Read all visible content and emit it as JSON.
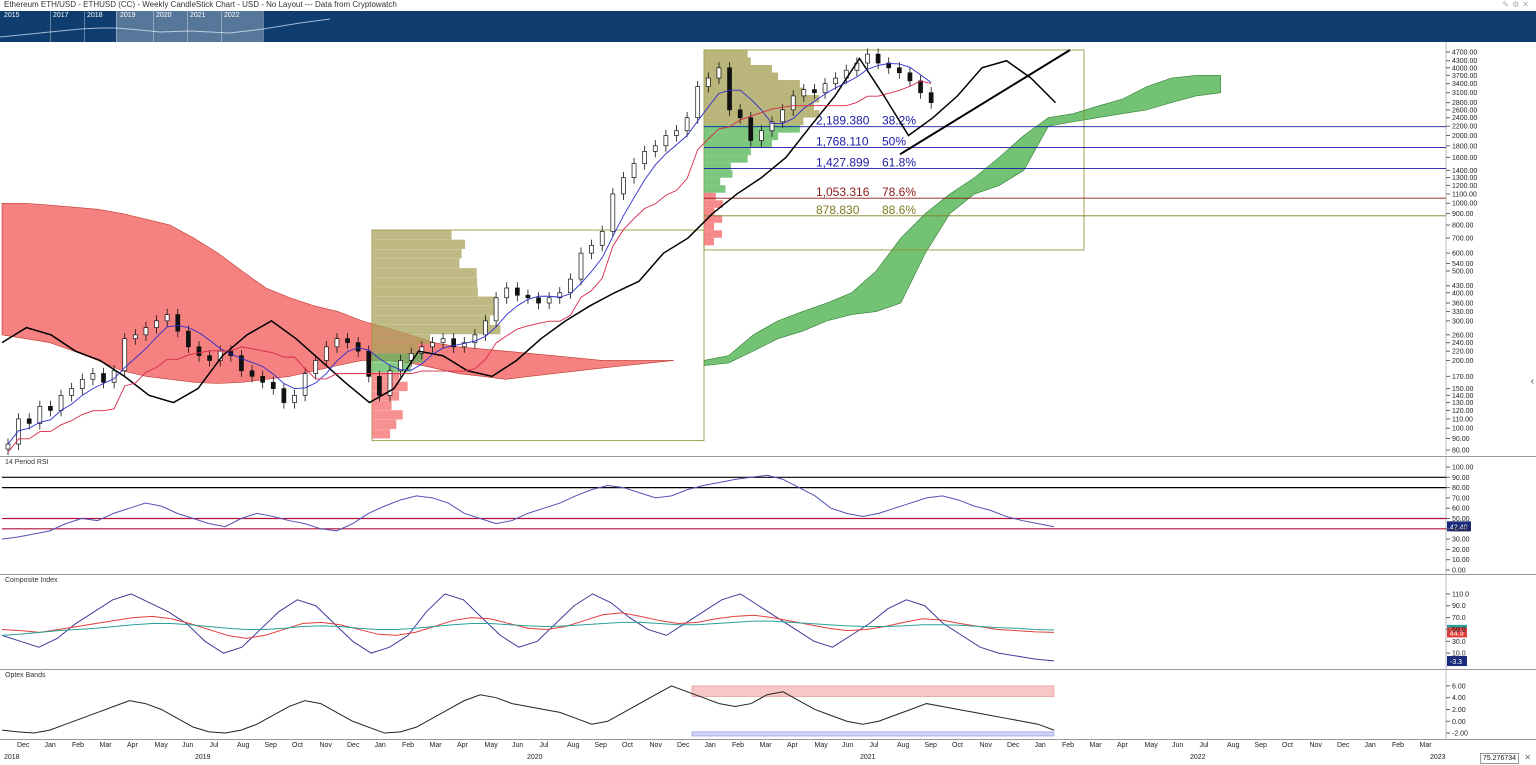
{
  "header": {
    "title": "Ethereum ETH/USD - ETHUSD (CC) - Weekly CandleStick Chart - USD - No Layout --- Data from Cryptowatch",
    "icons": [
      "pencil-icon",
      "gear-icon",
      "close-icon"
    ]
  },
  "navigator": {
    "years": [
      "2015",
      "2017",
      "2018",
      "2019",
      "2020",
      "2021",
      "2022"
    ]
  },
  "colors": {
    "navigator_bg": "#0e3d6e",
    "cloud_bull": "#5cb85c",
    "cloud_bear": "#f46b6b",
    "volume_olive": "#a9a25a",
    "fib_blue": "#1a1aa6",
    "fib_red": "#8b1a1a",
    "fib_olive": "#7f7a21",
    "rsi_line": "#5252b8",
    "composite_line": "#3d3d9c",
    "composite_fast_ma": "#e0403d",
    "composite_slow_ma": "#2aa198"
  },
  "chart_data": [
    {
      "type": "candlestick",
      "title": "Ethereum ETH/USD - ETHUSD (CC) - Weekly CandleStick Chart - USD",
      "yscale": "log",
      "ylim": [
        80,
        5000
      ],
      "y_ticks": [
        "4700.00",
        "4300.00",
        "4000.00",
        "3700.00",
        "3400.00",
        "3100.00",
        "2800.00",
        "2600.00",
        "2400.00",
        "2200.00",
        "2000.00",
        "1800.00",
        "1600.00",
        "1400.00",
        "1300.00",
        "1200.00",
        "1100.00",
        "1000.00",
        "900.00",
        "800.00",
        "700.00",
        "600.00",
        "540.00",
        "500.00",
        "430.00",
        "400.00",
        "360.00",
        "330.00",
        "300.00",
        "260.00",
        "240.00",
        "220.00",
        "200.00",
        "170.00",
        "150.00",
        "140.00",
        "130.00",
        "120.00",
        "110.00",
        "100.00",
        "90.00",
        "80.00"
      ],
      "x_months": [
        "Dec",
        "Jan",
        "Feb",
        "Mar",
        "Apr",
        "May",
        "Jun",
        "Jul",
        "Aug",
        "Sep",
        "Oct",
        "Nov",
        "Dec",
        "Jan",
        "Feb",
        "Mar",
        "Apr",
        "May",
        "Jun",
        "Jul",
        "Aug",
        "Sep",
        "Oct",
        "Nov",
        "Dec",
        "Jan",
        "Feb",
        "Mar",
        "Apr",
        "May",
        "Jun",
        "Jul",
        "Aug",
        "Sep",
        "Oct",
        "Nov",
        "Dec",
        "Jan",
        "Feb",
        "Mar",
        "Apr",
        "May",
        "Jun",
        "Jul",
        "Aug",
        "Sep",
        "Oct",
        "Nov",
        "Dec",
        "Jan",
        "Feb",
        "Mar"
      ],
      "x_years": [
        "2018",
        "2019",
        "2020",
        "2021",
        "2022",
        "2023"
      ],
      "weekly_close_2019_2022": [
        85,
        110,
        105,
        125,
        120,
        140,
        150,
        165,
        175,
        160,
        180,
        250,
        260,
        280,
        300,
        320,
        270,
        230,
        210,
        200,
        220,
        210,
        180,
        170,
        160,
        150,
        130,
        140,
        175,
        200,
        230,
        250,
        240,
        220,
        170,
        140,
        180,
        200,
        215,
        230,
        240,
        250,
        230,
        240,
        260,
        300,
        380,
        420,
        390,
        380,
        360,
        380,
        400,
        460,
        600,
        650,
        750,
        1100,
        1300,
        1500,
        1700,
        1800,
        2000,
        2100,
        2400,
        3300,
        3600,
        4000,
        2600,
        2400,
        1900,
        2100,
        2300,
        2600,
        3000,
        3200,
        3100,
        3400,
        3600,
        3900,
        4200,
        4600,
        4200,
        4000,
        3800,
        3500,
        3100,
        2800
      ],
      "chikou_span": [
        240,
        280,
        260,
        220,
        200,
        170,
        140,
        130,
        150,
        210,
        260,
        300,
        250,
        200,
        160,
        130,
        150,
        220,
        210,
        180,
        170,
        200,
        250,
        300,
        350,
        400,
        450,
        600,
        700,
        900,
        1100,
        1300,
        1600,
        2200,
        3000,
        4400,
        3000,
        2000,
        2400,
        3000,
        4000,
        4300,
        3600,
        2800
      ],
      "ichimoku_cloud": [
        {
          "start": "2018-Dec",
          "end": "2020-Jan",
          "color": "bear"
        },
        {
          "start": "2020-Jan",
          "end": "2020-Dec",
          "color": "bear"
        },
        {
          "start": "2020-Dec",
          "end": "2022-Jul",
          "color": "bull"
        }
      ],
      "fibonacci_levels": [
        {
          "price": "2,189.380",
          "ratio": "38.2%",
          "color": "blue"
        },
        {
          "price": "1,768.110",
          "ratio": "50%",
          "color": "blue"
        },
        {
          "price": "1,427.899",
          "ratio": "61.8%",
          "color": "blue"
        },
        {
          "price": "1,053.316",
          "ratio": "78.6%",
          "color": "red"
        },
        {
          "price": "878.830",
          "ratio": "88.6%",
          "color": "olive"
        }
      ],
      "trendline": {
        "from": 1650,
        "to": 4800
      }
    },
    {
      "type": "line",
      "title": "14 Period RSI",
      "ylim": [
        0,
        100
      ],
      "y_ticks": [
        "100.00",
        "90.00",
        "80.00",
        "70.00",
        "60.00",
        "50.00",
        "40.00",
        "30.00",
        "20.00",
        "10.00",
        "0.00"
      ],
      "levels": {
        "upper": [
          80,
          90
        ],
        "lower": [
          40,
          50
        ]
      },
      "last_value": "42.40",
      "values": [
        30,
        32,
        35,
        38,
        45,
        50,
        48,
        55,
        60,
        65,
        62,
        55,
        50,
        45,
        42,
        50,
        55,
        52,
        48,
        45,
        40,
        38,
        45,
        55,
        62,
        68,
        72,
        70,
        65,
        55,
        50,
        45,
        48,
        55,
        60,
        65,
        72,
        78,
        82,
        80,
        75,
        70,
        72,
        78,
        82,
        85,
        88,
        90,
        92,
        88,
        80,
        72,
        60,
        55,
        52,
        55,
        60,
        65,
        70,
        72,
        68,
        62,
        58,
        52,
        48,
        45,
        42
      ]
    },
    {
      "type": "line",
      "title": "Composite Index",
      "ylim": [
        -10,
        125
      ],
      "y_ticks": [
        "110.0",
        "90.0",
        "70.0",
        "50.0",
        "30.0",
        "10.0"
      ],
      "last_values": {
        "slow_ma": "49.3",
        "fast_ma": "44.9",
        "composite": "-3.3"
      },
      "series": [
        {
          "color": "blue",
          "values": [
            40,
            30,
            20,
            35,
            60,
            80,
            100,
            110,
            95,
            80,
            60,
            30,
            10,
            20,
            50,
            80,
            100,
            90,
            60,
            30,
            10,
            20,
            40,
            80,
            110,
            100,
            70,
            40,
            20,
            30,
            60,
            90,
            110,
            95,
            70,
            50,
            40,
            60,
            80,
            100,
            110,
            90,
            70,
            50,
            30,
            20,
            40,
            60,
            85,
            100,
            90,
            60,
            40,
            20,
            10,
            5,
            0,
            -3
          ]
        },
        {
          "color": "red",
          "values": [
            50,
            48,
            45,
            50,
            55,
            60,
            65,
            70,
            72,
            68,
            60,
            50,
            40,
            35,
            40,
            50,
            60,
            62,
            58,
            50,
            42,
            40,
            45,
            55,
            65,
            70,
            68,
            60,
            52,
            50,
            55,
            65,
            75,
            78,
            72,
            65,
            60,
            62,
            68,
            72,
            74,
            70,
            64,
            58,
            52,
            48,
            50,
            55,
            62,
            68,
            66,
            60,
            55,
            50,
            48,
            46,
            45
          ]
        },
        {
          "color": "teal",
          "values": [
            40,
            42,
            45,
            48,
            50,
            52,
            55,
            58,
            60,
            60,
            58,
            55,
            52,
            50,
            50,
            52,
            55,
            56,
            55,
            52,
            50,
            50,
            52,
            55,
            58,
            60,
            60,
            58,
            56,
            55,
            56,
            58,
            60,
            62,
            62,
            60,
            58,
            58,
            60,
            62,
            64,
            64,
            62,
            60,
            58,
            56,
            55,
            55,
            56,
            58,
            58,
            57,
            55,
            53,
            52,
            50,
            49
          ]
        }
      ]
    },
    {
      "type": "line",
      "title": "Optex Bands",
      "ylim": [
        -2.5,
        7
      ],
      "y_ticks": [
        "6.00",
        "4.00",
        "2.00",
        "0.00",
        "-2.00"
      ],
      "bands": {
        "upper": [
          4.2,
          6.0
        ],
        "lower": [
          -2.5,
          -1.8
        ]
      },
      "values": [
        -1.5,
        -1.8,
        -2,
        -1.5,
        -0.5,
        0.5,
        1.5,
        2.5,
        3.5,
        3,
        2,
        0.5,
        -1,
        -1.8,
        -2,
        -1.5,
        -0.5,
        1,
        2.5,
        3.5,
        3,
        1.5,
        0,
        -1,
        -2,
        -1.8,
        -1,
        0.5,
        2,
        3.5,
        4.5,
        4,
        3,
        2.5,
        2,
        1.5,
        0.5,
        -0.5,
        0,
        1.5,
        3,
        4.5,
        6,
        5,
        4,
        3,
        2.5,
        3,
        4.5,
        5,
        3.5,
        2,
        1,
        0,
        -0.5,
        0,
        1,
        2,
        3,
        2.5,
        2,
        1.5,
        1,
        0.5,
        0,
        -0.5,
        -1.5
      ]
    }
  ],
  "readout": "75.276734"
}
